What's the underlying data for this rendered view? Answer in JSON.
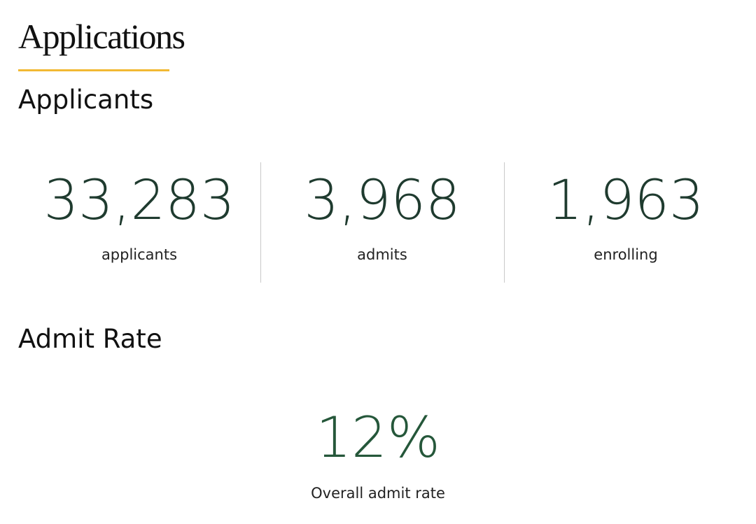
{
  "page": {
    "title": "Applications",
    "accent_color": "#f2b933"
  },
  "applicants_section": {
    "heading": "Applicants",
    "value_color": "#1f3b2f",
    "stats": [
      {
        "value": "33,283",
        "label": "applicants"
      },
      {
        "value": "3,968",
        "label": "admits"
      },
      {
        "value": "1,963",
        "label": "enrolling"
      }
    ]
  },
  "admit_rate_section": {
    "heading": "Admit Rate",
    "value": "12%",
    "label": "Overall admit rate",
    "value_color": "#25573a"
  }
}
